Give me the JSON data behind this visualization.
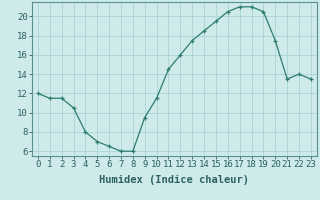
{
  "x": [
    0,
    1,
    2,
    3,
    4,
    5,
    6,
    7,
    8,
    9,
    10,
    11,
    12,
    13,
    14,
    15,
    16,
    17,
    18,
    19,
    20,
    21,
    22,
    23
  ],
  "y": [
    12,
    11.5,
    11.5,
    10.5,
    8,
    7,
    6.5,
    6,
    6,
    9.5,
    11.5,
    14.5,
    16,
    17.5,
    18.5,
    19.5,
    20.5,
    21,
    21,
    20.5,
    17.5,
    13.5,
    14,
    13.5
  ],
  "line_color": "#2e7d6e",
  "marker": "+",
  "marker_color": "#2e7d6e",
  "bg_color": "#ceeaea",
  "grid_color": "#aad4d4",
  "xlabel": "Humidex (Indice chaleur)",
  "xlim": [
    -0.5,
    23.5
  ],
  "ylim": [
    5.5,
    21.5
  ],
  "yticks": [
    6,
    8,
    10,
    12,
    14,
    16,
    18,
    20
  ],
  "xtick_labels": [
    "0",
    "1",
    "2",
    "3",
    "4",
    "5",
    "6",
    "7",
    "8",
    "9",
    "10",
    "11",
    "12",
    "13",
    "14",
    "15",
    "16",
    "17",
    "18",
    "19",
    "20",
    "21",
    "22",
    "23"
  ],
  "tick_fontsize": 6.5,
  "xlabel_fontsize": 7.5,
  "axis_color": "#2e6060",
  "spine_color": "#5a9090"
}
